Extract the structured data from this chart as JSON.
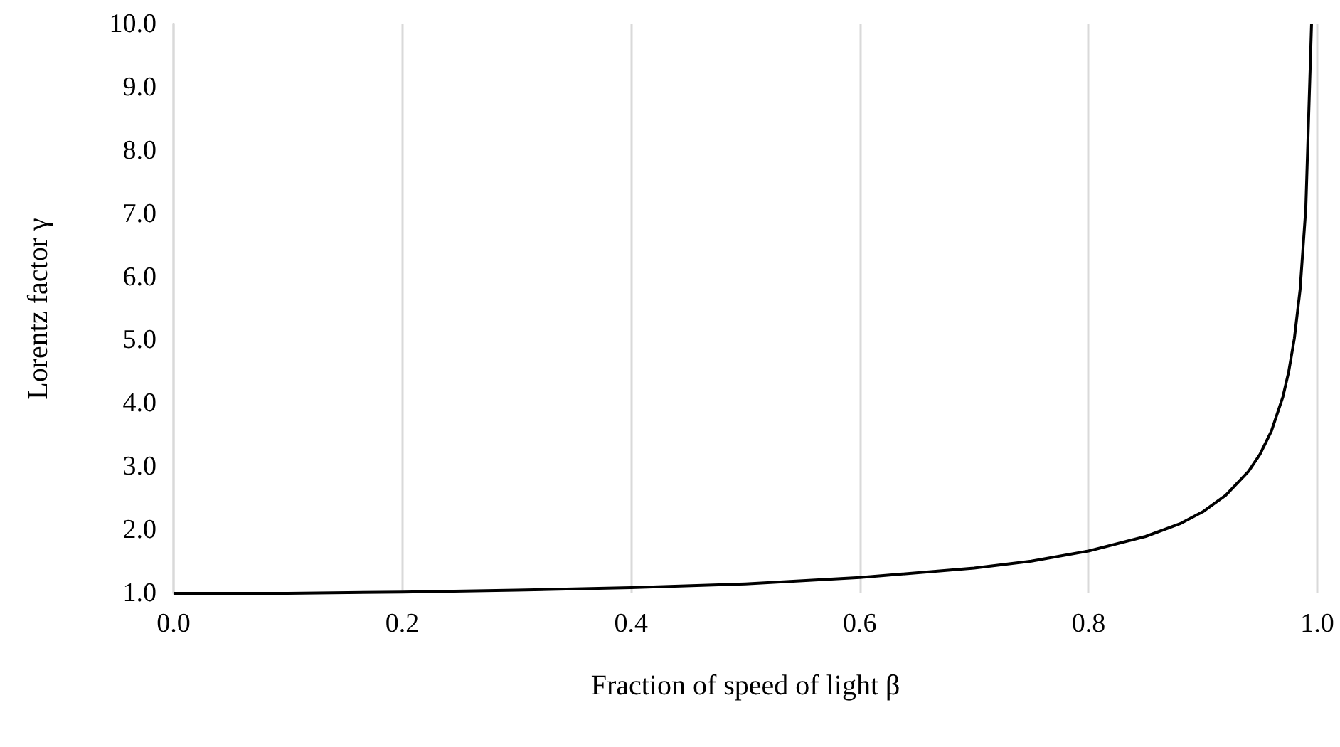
{
  "chart_data": {
    "type": "line",
    "xlabel": "Fraction of speed of light β",
    "ylabel": "Lorentz factor γ",
    "x": [
      0,
      0.1,
      0.2,
      0.3,
      0.4,
      0.5,
      0.6,
      0.7,
      0.75,
      0.8,
      0.85,
      0.88,
      0.9,
      0.92,
      0.94,
      0.95,
      0.96,
      0.97,
      0.975,
      0.98,
      0.985,
      0.99,
      0.995
    ],
    "series": [
      {
        "color": "#000000",
        "values": [
          1.0,
          1.0,
          1.02,
          1.05,
          1.09,
          1.15,
          1.25,
          1.4,
          1.51,
          1.67,
          1.9,
          2.1,
          2.29,
          2.55,
          2.93,
          3.2,
          3.57,
          4.11,
          4.5,
          5.03,
          5.8,
          7.09,
          10.0
        ]
      }
    ],
    "xlim": [
      0,
      1
    ],
    "xticks": [
      {
        "value": 0,
        "label": "0.0"
      },
      {
        "value": 0.2,
        "label": "0.2"
      },
      {
        "value": 0.4,
        "label": "0.4"
      },
      {
        "value": 0.6,
        "label": "0.6"
      },
      {
        "value": 0.8,
        "label": "0.8"
      },
      {
        "value": 1,
        "label": "1.0"
      }
    ],
    "ylim": [
      1,
      10
    ],
    "yticks": [
      {
        "value": 1,
        "label": "1.0"
      },
      {
        "value": 2,
        "label": "2.0"
      },
      {
        "value": 3,
        "label": "3.0"
      },
      {
        "value": 4,
        "label": "4.0"
      },
      {
        "value": 5,
        "label": "5.0"
      },
      {
        "value": 6,
        "label": "6.0"
      },
      {
        "value": 7,
        "label": "7.0"
      },
      {
        "value": 8,
        "label": "8.0"
      },
      {
        "value": 9,
        "label": "9.0"
      },
      {
        "value": 10,
        "label": "10.0"
      }
    ],
    "grid": "x",
    "marker": "none",
    "line_style": "solid"
  }
}
